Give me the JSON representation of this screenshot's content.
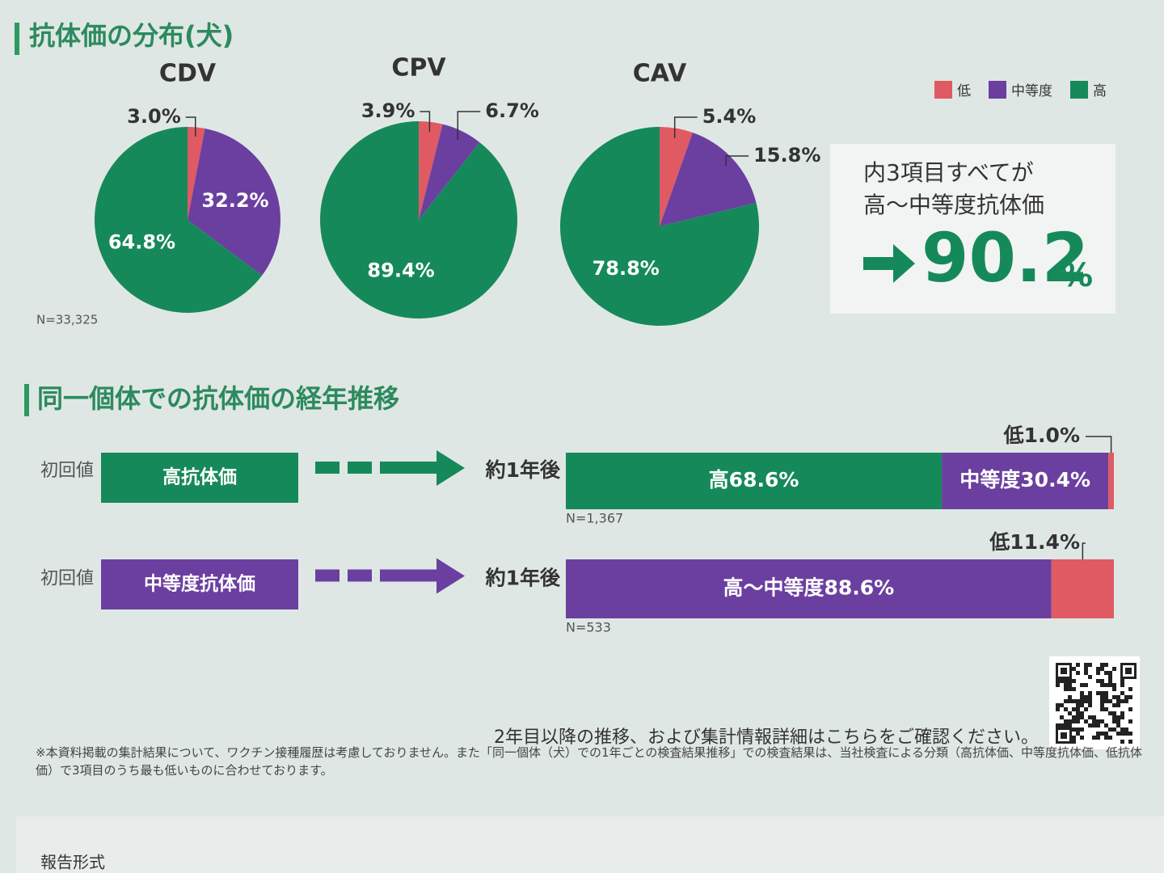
{
  "header": {
    "section_1": "抗体価の分布(犬)",
    "section_2": "同一個体での抗体価の経年推移"
  },
  "legend": {
    "labels": [
      "低",
      "中等度",
      "高"
    ],
    "colors": [
      "#e05a64",
      "#6b3fa0",
      "#16895a"
    ]
  },
  "chart_data": [
    {
      "type": "pie",
      "title": "CDV",
      "values": [
        3.0,
        32.2,
        64.8
      ],
      "value_labels": [
        "3.0%",
        "32.2%",
        "64.8%"
      ],
      "colors": [
        "#e05a64",
        "#6b3fa0",
        "#16895a"
      ],
      "note": "N=33,325"
    },
    {
      "type": "pie",
      "title": "CPV",
      "values": [
        3.9,
        6.7,
        89.4
      ],
      "value_labels": [
        "3.9%",
        "6.7%",
        "89.4%"
      ],
      "colors": [
        "#e05a64",
        "#6b3fa0",
        "#16895a"
      ]
    },
    {
      "type": "pie",
      "title": "CAV",
      "values": [
        5.4,
        15.8,
        78.8
      ],
      "value_labels": [
        "5.4%",
        "15.8%",
        "78.8%"
      ],
      "colors": [
        "#e05a64",
        "#6b3fa0",
        "#16895a"
      ]
    },
    {
      "type": "stacked-bar",
      "xlim": [
        0,
        100
      ],
      "rows": [
        {
          "start_label": "初回値",
          "start": "高抗体価",
          "start_color": "#16895a",
          "after": "約1年後",
          "values": [
            68.6,
            30.4,
            1.0
          ],
          "value_labels": [
            "高68.6%",
            "中等度30.4%",
            "低1.0%"
          ],
          "colors": [
            "#16895a",
            "#6b3fa0",
            "#e05a64"
          ],
          "note": "N=1,367"
        },
        {
          "start_label": "初回値",
          "start": "中等度抗体価",
          "start_color": "#6b3fa0",
          "after": "約1年後",
          "values": [
            88.6,
            11.4
          ],
          "value_labels": [
            "高〜中等度88.6%",
            "低11.4%"
          ],
          "colors": [
            "#6b3fa0",
            "#e05a64"
          ],
          "note": "N=533"
        }
      ]
    }
  ],
  "summary": {
    "lines": [
      "内3項目すべてが",
      "高〜中等度抗体価"
    ],
    "result": "90.2",
    "unit": "%"
  },
  "link_text": "2年目以降の推移、および集計情報詳細はこちらをご確認ください。",
  "footnote": "※本資料掲載の集計結果について、ワクチン接種履歴は考慮しておりません。また「同一個体（犬）での1年ごとの検査結果推移」での検査結果は、当社検査による分類（高抗体価、中等度抗体価、低抗体価）で3項目のうち最も低いものに合わせております。",
  "next_section": "報告形式"
}
